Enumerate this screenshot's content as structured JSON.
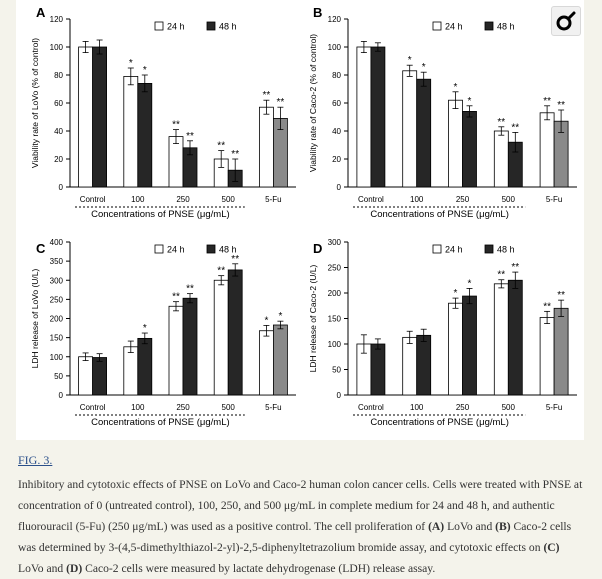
{
  "figure": {
    "label": "FIG. 3.",
    "caption": [
      {
        "text": "Inhibitory and cytotoxic effects of PNSE on LoVo and Caco-2 human colon cancer cells. Cells were treated with PNSE at concentration of 0 (untreated control), 100, 250, and 500 μg/mL in complete medium for 24 and 48 h, and authentic fluorouracil (5-Fu) (250 μg/mL) was used as a positive control. The cell proliferation of ",
        "bold": false
      },
      {
        "text": "(A)",
        "bold": true
      },
      {
        "text": " LoVo and ",
        "bold": false
      },
      {
        "text": "(B)",
        "bold": true
      },
      {
        "text": " Caco-2 cells was determined by 3-(4,5-dimethylthiazol-2-yl)-2,5-diphenyltetrazolium bromide assay, and cytotoxic effects on ",
        "bold": false
      },
      {
        "text": "(C)",
        "bold": true
      },
      {
        "text": " LoVo and ",
        "bold": false
      },
      {
        "text": "(D)",
        "bold": true
      },
      {
        "text": " Caco-2 cells were measured by lactate dehydrogenase (LDH) release assay.",
        "bold": false
      }
    ]
  },
  "zoom_icon": "magnify-icon",
  "colors": {
    "bar_24h": "#ffffff",
    "bar_48h": "#262626",
    "bar_5fu_48h": "#8a8a8a",
    "accent": "#2a4f8a"
  },
  "chart_data": [
    {
      "panel": "A",
      "type": "bar",
      "categories": [
        "Control",
        "100",
        "250",
        "500",
        "5-Fu"
      ],
      "xlabel": "Concentrations of PNSE (μg/mL)",
      "ylabel": "Viability rate of LoVo (% of control)",
      "ylim": [
        0,
        120
      ],
      "yticks": [
        0,
        20,
        40,
        60,
        80,
        100,
        120
      ],
      "legend_position": "top",
      "series": [
        {
          "name": "24 h",
          "values": [
            100,
            79,
            36,
            20,
            57
          ],
          "errors": [
            4,
            6,
            5,
            6,
            5
          ],
          "stars": [
            "",
            "*",
            "**",
            "**",
            "**"
          ]
        },
        {
          "name": "48 h",
          "values": [
            100,
            74,
            28,
            12,
            49
          ],
          "errors": [
            5,
            6,
            5,
            8,
            8
          ],
          "stars": [
            "",
            "*",
            "**",
            "**",
            "**"
          ]
        }
      ]
    },
    {
      "panel": "B",
      "type": "bar",
      "categories": [
        "Control",
        "100",
        "250",
        "500",
        "5-Fu"
      ],
      "xlabel": "Concentrations of PNSE (μg/mL)",
      "ylabel": "Viability rate of Caco-2 (% of control)",
      "ylim": [
        0,
        120
      ],
      "yticks": [
        0,
        20,
        40,
        60,
        80,
        100,
        120
      ],
      "legend_position": "top",
      "series": [
        {
          "name": "24 h",
          "values": [
            100,
            83,
            62,
            40,
            53
          ],
          "errors": [
            4,
            4,
            6,
            3,
            5
          ],
          "stars": [
            "",
            "*",
            "*",
            "**",
            "**"
          ]
        },
        {
          "name": "48 h",
          "values": [
            100,
            77,
            54,
            32,
            47
          ],
          "errors": [
            3,
            5,
            4,
            7,
            8
          ],
          "stars": [
            "",
            "*",
            "*",
            "**",
            "**"
          ]
        }
      ]
    },
    {
      "panel": "C",
      "type": "bar",
      "categories": [
        "Control",
        "100",
        "250",
        "500",
        "5-Fu"
      ],
      "xlabel": "Concentrations of PNSE (μg/mL)",
      "ylabel": "LDH release of LoVo (U/L)",
      "ylim": [
        0,
        400
      ],
      "yticks": [
        0,
        50,
        100,
        150,
        200,
        250,
        300,
        350,
        400
      ],
      "legend_position": "top",
      "series": [
        {
          "name": "24 h",
          "values": [
            100,
            126,
            232,
            300,
            168
          ],
          "errors": [
            10,
            15,
            12,
            12,
            14
          ],
          "stars": [
            "",
            "",
            "**",
            "**",
            "*"
          ]
        },
        {
          "name": "48 h",
          "values": [
            98,
            148,
            253,
            327,
            183
          ],
          "errors": [
            10,
            14,
            12,
            16,
            10
          ],
          "stars": [
            "",
            "*",
            "**",
            "**",
            "*"
          ]
        }
      ]
    },
    {
      "panel": "D",
      "type": "bar",
      "categories": [
        "Control",
        "100",
        "250",
        "500",
        "5-Fu"
      ],
      "xlabel": "Concentrations of PNSE (μg/mL)",
      "ylabel": "LDH release of Caco-2 (U/L)",
      "ylim": [
        0,
        300
      ],
      "yticks": [
        0,
        50,
        100,
        150,
        200,
        250,
        300
      ],
      "legend_position": "top",
      "series": [
        {
          "name": "24 h",
          "values": [
            100,
            113,
            180,
            218,
            152
          ],
          "errors": [
            18,
            12,
            10,
            8,
            12
          ],
          "stars": [
            "",
            "",
            "*",
            "**",
            "**"
          ]
        },
        {
          "name": "48 h",
          "values": [
            100,
            117,
            194,
            225,
            170
          ],
          "errors": [
            10,
            12,
            15,
            16,
            16
          ],
          "stars": [
            "",
            "",
            "*",
            "**",
            "**"
          ]
        }
      ]
    }
  ]
}
